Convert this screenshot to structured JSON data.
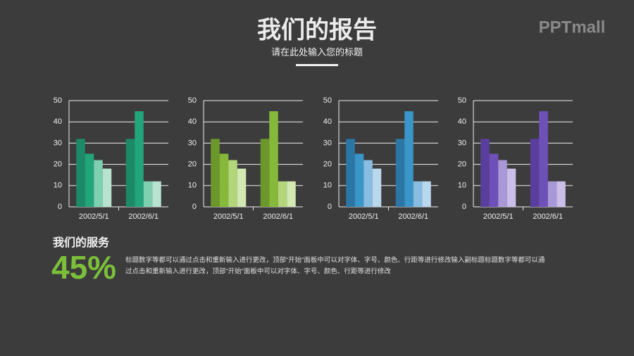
{
  "header": {
    "title": "我们的报告",
    "subtitle": "请在此处输入您的标题"
  },
  "logo": "PPTmall",
  "service": {
    "title": "我们的服务",
    "percent": "45%",
    "body": [
      "标题数字等都可以通过点击和重新输入进行更改，顶部“开始”面板中可以对字体、字号、颜色、行距等进行修改输入副标题标题数字等都可以通",
      "过点击和重新输入进行更改，顶部“开始”面板中可以对字体、字号、颜色、行距等进行修改"
    ]
  },
  "chart_data": [
    {
      "type": "bar",
      "categories": [
        "2002/5/1",
        "2002/6/1"
      ],
      "ylim": [
        0,
        50
      ],
      "yticks": [
        0,
        10,
        20,
        30,
        40,
        50
      ],
      "grid": true,
      "series": [
        {
          "color": "#1d8a67",
          "values": [
            32,
            32
          ]
        },
        {
          "color": "#22a57a",
          "values": [
            25,
            45
          ]
        },
        {
          "color": "#7fcfb1",
          "values": [
            22,
            12
          ]
        },
        {
          "color": "#b7e3d0",
          "values": [
            18,
            12
          ]
        }
      ]
    },
    {
      "type": "bar",
      "categories": [
        "2002/5/1",
        "2002/6/1"
      ],
      "ylim": [
        0,
        50
      ],
      "yticks": [
        0,
        10,
        20,
        30,
        40,
        50
      ],
      "grid": true,
      "series": [
        {
          "color": "#6c982b",
          "values": [
            32,
            32
          ]
        },
        {
          "color": "#86b83a",
          "values": [
            25,
            45
          ]
        },
        {
          "color": "#b4d67b",
          "values": [
            22,
            12
          ]
        },
        {
          "color": "#d4e8b2",
          "values": [
            18,
            12
          ]
        }
      ]
    },
    {
      "type": "bar",
      "categories": [
        "2002/5/1",
        "2002/6/1"
      ],
      "ylim": [
        0,
        50
      ],
      "yticks": [
        0,
        10,
        20,
        30,
        40,
        50
      ],
      "grid": true,
      "series": [
        {
          "color": "#2c76a6",
          "values": [
            32,
            32
          ]
        },
        {
          "color": "#3a95c8",
          "values": [
            25,
            45
          ]
        },
        {
          "color": "#88bde1",
          "values": [
            22,
            12
          ]
        },
        {
          "color": "#b9d7ed",
          "values": [
            18,
            12
          ]
        }
      ]
    },
    {
      "type": "bar",
      "categories": [
        "2002/5/1",
        "2002/6/1"
      ],
      "ylim": [
        0,
        50
      ],
      "yticks": [
        0,
        10,
        20,
        30,
        40,
        50
      ],
      "grid": true,
      "series": [
        {
          "color": "#5a3e9e",
          "values": [
            32,
            32
          ]
        },
        {
          "color": "#6f50b8",
          "values": [
            25,
            45
          ]
        },
        {
          "color": "#a898d7",
          "values": [
            22,
            12
          ]
        },
        {
          "color": "#cabfe9",
          "values": [
            18,
            12
          ]
        }
      ]
    }
  ]
}
